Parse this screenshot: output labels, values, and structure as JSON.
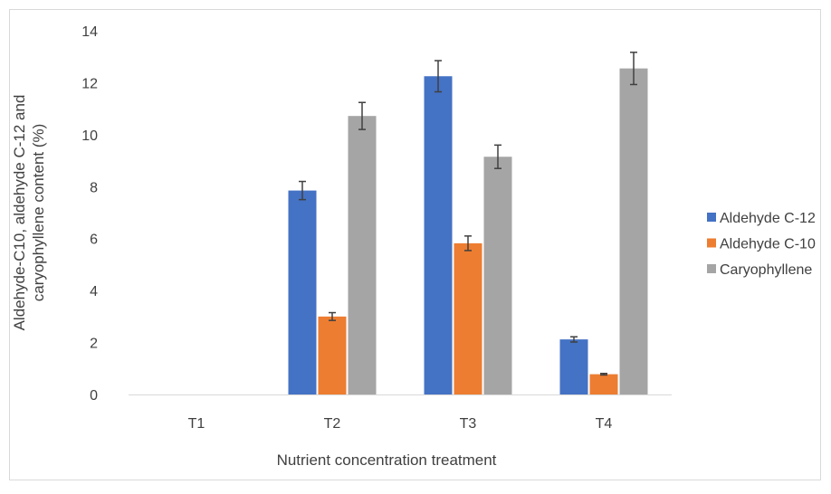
{
  "chart_data": {
    "type": "bar",
    "xlabel": "Nutrient concentration treatment",
    "ylabel_lines": [
      "Aldehyde-C10, aldehyde C-12 and",
      "caryophyllene content (%)"
    ],
    "ylim": [
      0,
      14
    ],
    "yticks": [
      0,
      2,
      4,
      6,
      8,
      10,
      12,
      14
    ],
    "categories": [
      "T1",
      "T2",
      "T3",
      "T4"
    ],
    "grid": false,
    "legend_position": "right",
    "series": [
      {
        "name": "Aldehyde C-12",
        "color": "#4472C4",
        "values": [
          0,
          7.85,
          12.25,
          2.12
        ],
        "errors": [
          0,
          0.35,
          0.6,
          0.1
        ]
      },
      {
        "name": "Aldehyde C-10",
        "color": "#ED7D31",
        "values": [
          0,
          3.0,
          5.82,
          0.78
        ],
        "errors": [
          0,
          0.15,
          0.28,
          0.03
        ]
      },
      {
        "name": "Caryophyllene",
        "color": "#A5A5A5",
        "values": [
          0,
          10.72,
          9.15,
          12.55
        ],
        "errors": [
          0,
          0.52,
          0.45,
          0.62
        ]
      }
    ]
  }
}
